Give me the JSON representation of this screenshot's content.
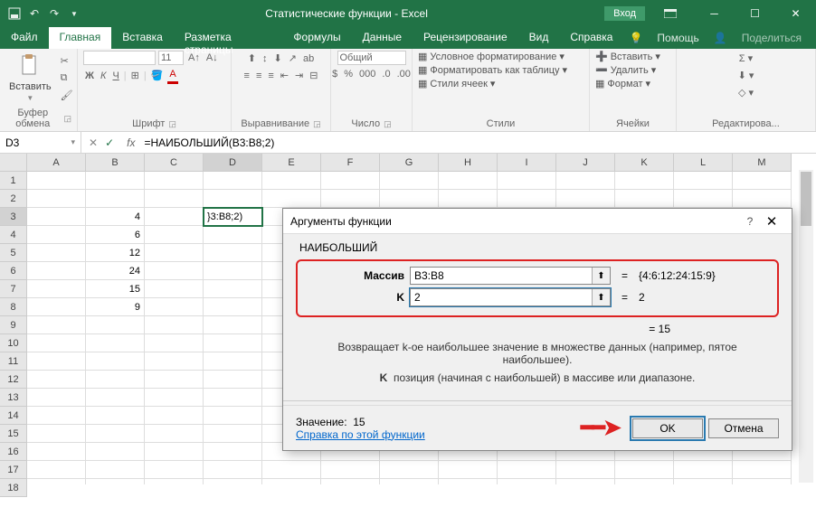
{
  "titlebar": {
    "title": "Статистические функции - Excel",
    "signin": "Вход"
  },
  "tabs": {
    "file": "Файл",
    "home": "Главная",
    "insert": "Вставка",
    "layout": "Разметка страницы",
    "formulas": "Формулы",
    "data": "Данные",
    "review": "Рецензирование",
    "view": "Вид",
    "help": "Справка",
    "assist": "Помощь",
    "share": "Поделиться"
  },
  "ribbon": {
    "paste": "Вставить",
    "clipboard": "Буфер обмена",
    "font": "Шрифт",
    "font_size": "11",
    "alignment": "Выравнивание",
    "number": "Число",
    "number_format": "Общий",
    "cond_fmt": "Условное форматирование",
    "as_table": "Форматировать как таблицу",
    "cell_styles": "Стили ячеек",
    "styles": "Стили",
    "insert_cells": "Вставить",
    "delete_cells": "Удалить",
    "format_cells": "Формат",
    "cells": "Ячейки",
    "editing": "Редактирова..."
  },
  "fbar": {
    "name": "D3",
    "formula": "=НАИБОЛЬШИЙ(B3:B8;2)"
  },
  "sheet": {
    "cols": [
      "A",
      "B",
      "C",
      "D",
      "E",
      "F",
      "G",
      "H",
      "I",
      "J",
      "K",
      "L",
      "M"
    ],
    "rows": 18,
    "active_col": "D",
    "active_row": 3,
    "data": {
      "B3": "4",
      "B4": "6",
      "B5": "12",
      "B6": "24",
      "B7": "15",
      "B8": "9",
      "D3_display": "}3:B8;2)"
    }
  },
  "dialog": {
    "title": "Аргументы функции",
    "func": "НАИБОЛЬШИЙ",
    "args": {
      "array_label": "Массив",
      "array_value": "B3:B8",
      "array_eval": "{4:6:12:24:15:9}",
      "k_label": "K",
      "k_value": "2",
      "k_eval": "2"
    },
    "result_eq": "= 15",
    "desc": "Возвращает k-ое наибольшее значение в множестве данных (например, пятое наибольшее).",
    "desc2_bold": "K",
    "desc2": "позиция (начиная с наибольшей) в массиве или диапазоне.",
    "value_label": "Значение:",
    "value": "15",
    "help_link": "Справка по этой функции",
    "ok": "OK",
    "cancel": "Отмена"
  }
}
